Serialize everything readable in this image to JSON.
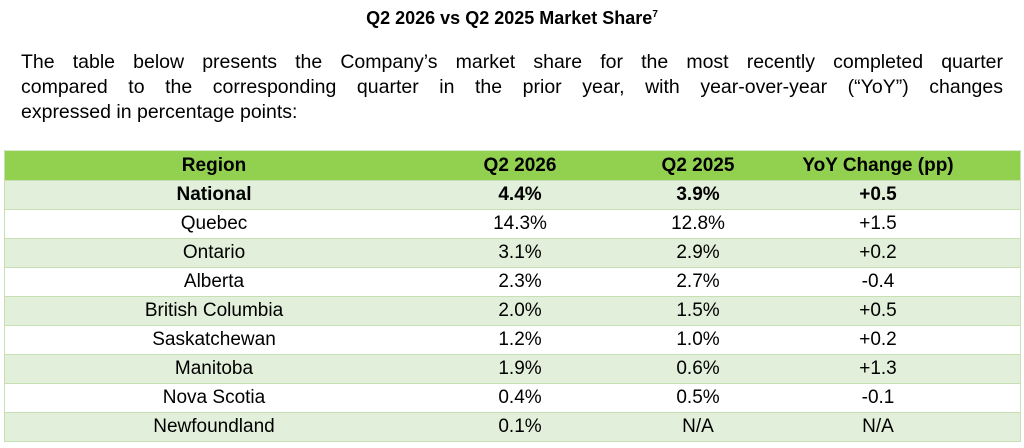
{
  "title": {
    "text": "Q2 2026 vs Q2 2025 Market Share",
    "footnote": "7"
  },
  "intro": {
    "lines": [
      "The table below presents the Company’s market share for the most recently completed quarter",
      "compared to the corresponding quarter in the prior year, with year-over-year (“YoY”) changes",
      "expressed in percentage points:"
    ]
  },
  "colors": {
    "header_bg": "#92d050",
    "band_bg": "#e2efda",
    "border": "#c6e0b4"
  },
  "table": {
    "headers": [
      "Region",
      "Q2 2026",
      "Q2 2025",
      "YoY Change (pp)"
    ],
    "rows": [
      {
        "region": "National",
        "q2_2026": "4.4%",
        "q2_2025": "3.9%",
        "yoy": "+0.5"
      },
      {
        "region": "Quebec",
        "q2_2026": "14.3%",
        "q2_2025": "12.8%",
        "yoy": "+1.5"
      },
      {
        "region": "Ontario",
        "q2_2026": "3.1%",
        "q2_2025": "2.9%",
        "yoy": "+0.2"
      },
      {
        "region": "Alberta",
        "q2_2026": "2.3%",
        "q2_2025": "2.7%",
        "yoy": "-0.4"
      },
      {
        "region": "British Columbia",
        "q2_2026": "2.0%",
        "q2_2025": "1.5%",
        "yoy": "+0.5"
      },
      {
        "region": "Saskatchewan",
        "q2_2026": "1.2%",
        "q2_2025": "1.0%",
        "yoy": "+0.2"
      },
      {
        "region": "Manitoba",
        "q2_2026": "1.9%",
        "q2_2025": "0.6%",
        "yoy": "+1.3"
      },
      {
        "region": "Nova Scotia",
        "q2_2026": "0.4%",
        "q2_2025": "0.5%",
        "yoy": "-0.1"
      },
      {
        "region": "Newfoundland",
        "q2_2026": "0.1%",
        "q2_2025": "N/A",
        "yoy": "N/A"
      }
    ]
  }
}
